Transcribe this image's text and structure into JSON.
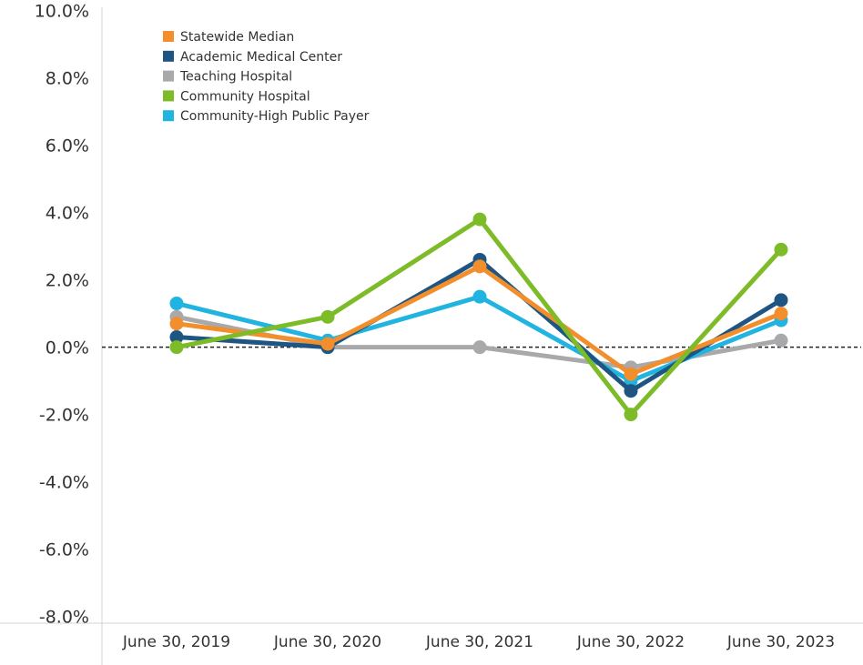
{
  "chart_data": {
    "type": "line",
    "categories": [
      "June 30, 2019",
      "June 30, 2020",
      "June 30, 2021",
      "June 30, 2022",
      "June 30, 2023"
    ],
    "series": [
      {
        "name": "Statewide Median",
        "color": "#f28e2b",
        "values": [
          0.7,
          0.1,
          2.4,
          -0.8,
          1.0
        ]
      },
      {
        "name": "Academic Medical Center",
        "color": "#1f5582",
        "values": [
          0.3,
          0.0,
          2.6,
          -1.3,
          1.4
        ]
      },
      {
        "name": "Teaching Hospital",
        "color": "#a9a9ab",
        "values": [
          0.9,
          0.0,
          0.0,
          -0.6,
          0.2
        ]
      },
      {
        "name": "Community Hospital",
        "color": "#7dbc28",
        "values": [
          0.0,
          0.9,
          3.8,
          -2.0,
          2.9
        ]
      },
      {
        "name": "Community-High Public Payer",
        "color": "#21b4e0",
        "values": [
          1.3,
          0.2,
          1.5,
          -1.0,
          0.8
        ]
      }
    ],
    "y_tick_labels": [
      "10.0%",
      "8.0%",
      "6.0%",
      "4.0%",
      "2.0%",
      "0.0%",
      "-2.0%",
      "-4.0%",
      "-6.0%",
      "-8.0%"
    ],
    "y_tick_values": [
      10,
      8,
      6,
      4,
      2,
      0,
      -2,
      -4,
      -6,
      -8
    ],
    "ylim": [
      -8.2,
      10.1
    ],
    "xlabel": "",
    "ylabel": "",
    "title": "",
    "reference_line": 0,
    "grid": false,
    "legend_position": "top-left"
  }
}
